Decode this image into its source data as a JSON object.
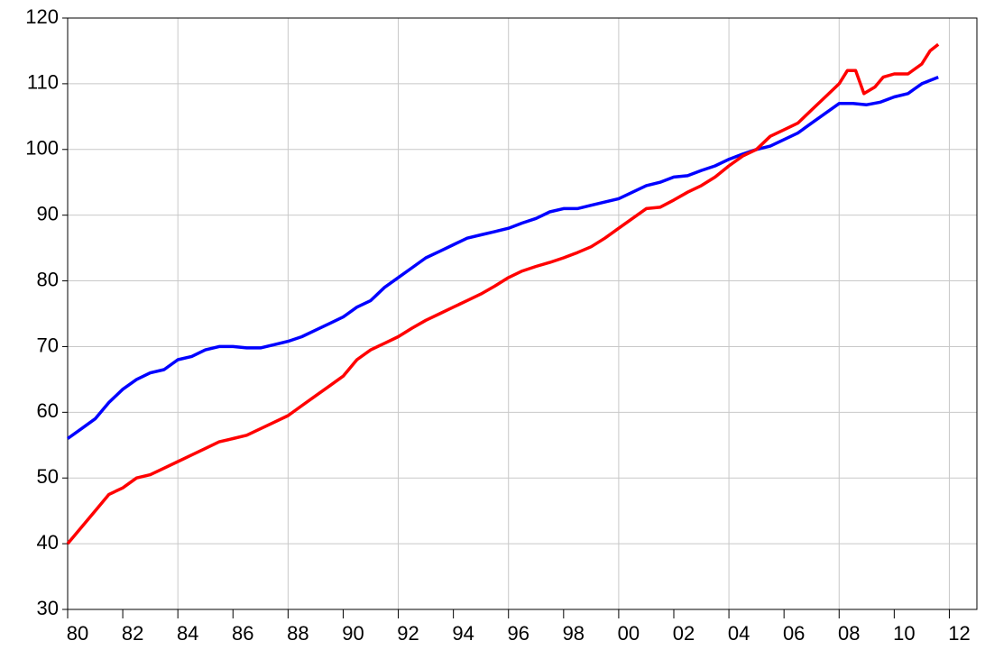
{
  "chart_data": {
    "type": "line",
    "xlim": [
      1980,
      2013
    ],
    "ylim": [
      30,
      120
    ],
    "yticks": [
      30,
      40,
      50,
      60,
      70,
      80,
      90,
      100,
      110,
      120
    ],
    "xticks": [
      {
        "value": 1980,
        "label": "80"
      },
      {
        "value": 1982,
        "label": "82"
      },
      {
        "value": 1984,
        "label": "84"
      },
      {
        "value": 1986,
        "label": "86"
      },
      {
        "value": 1988,
        "label": "88"
      },
      {
        "value": 1990,
        "label": "90"
      },
      {
        "value": 1992,
        "label": "92"
      },
      {
        "value": 1994,
        "label": "94"
      },
      {
        "value": 1996,
        "label": "96"
      },
      {
        "value": 1998,
        "label": "98"
      },
      {
        "value": 2000,
        "label": "00"
      },
      {
        "value": 2002,
        "label": "02"
      },
      {
        "value": 2004,
        "label": "04"
      },
      {
        "value": 2006,
        "label": "06"
      },
      {
        "value": 2008,
        "label": "08"
      },
      {
        "value": 2010,
        "label": "10"
      },
      {
        "value": 2012,
        "label": "12"
      }
    ],
    "xgrid": [
      1984,
      1988,
      1992,
      1996,
      2000,
      2004,
      2008,
      2012
    ],
    "grid": true,
    "series": [
      {
        "color": "#0000ff",
        "x": [
          1980,
          1980.5,
          1981,
          1981.5,
          1982,
          1982.5,
          1983,
          1983.5,
          1984,
          1984.5,
          1985,
          1985.5,
          1986,
          1986.5,
          1987,
          1987.5,
          1988,
          1988.5,
          1989,
          1989.5,
          1990,
          1990.5,
          1991,
          1991.5,
          1992,
          1992.5,
          1993,
          1993.5,
          1994,
          1994.5,
          1995,
          1995.5,
          1996,
          1996.5,
          1997,
          1997.5,
          1998,
          1998.5,
          1999,
          1999.5,
          2000,
          2000.5,
          2001,
          2001.5,
          2002,
          2002.5,
          2003,
          2003.5,
          2004,
          2004.5,
          2005,
          2005.5,
          2006,
          2006.5,
          2007,
          2007.5,
          2008,
          2008.5,
          2009,
          2009.5,
          2010,
          2010.5,
          2011,
          2011.6
        ],
        "values": [
          56,
          57.5,
          59,
          61.5,
          63.5,
          65,
          66,
          66.5,
          68,
          68.5,
          69.5,
          70,
          70,
          69.8,
          69.8,
          70.3,
          70.8,
          71.5,
          72.5,
          73.5,
          74.5,
          76,
          77,
          79,
          80.5,
          82,
          83.5,
          84.5,
          85.5,
          86.5,
          87,
          87.5,
          88,
          88.8,
          89.5,
          90.5,
          91,
          91,
          91.5,
          92,
          92.5,
          93.5,
          94.5,
          95,
          95.8,
          96,
          96.8,
          97.5,
          98.5,
          99.3,
          100,
          100.5,
          101.5,
          102.5,
          104,
          105.5,
          107,
          107,
          106.8,
          107.2,
          108,
          108.5,
          110,
          111
        ]
      },
      {
        "color": "#ff0000",
        "x": [
          1980,
          1980.5,
          1981,
          1981.5,
          1982,
          1982.5,
          1983,
          1983.5,
          1984,
          1984.5,
          1985,
          1985.5,
          1986,
          1986.5,
          1987,
          1987.5,
          1988,
          1988.5,
          1989,
          1989.5,
          1990,
          1990.5,
          1991,
          1991.5,
          1992,
          1992.5,
          1993,
          1993.5,
          1994,
          1994.5,
          1995,
          1995.5,
          1996,
          1996.5,
          1997,
          1997.5,
          1998,
          1998.5,
          1999,
          1999.5,
          2000,
          2000.5,
          2001,
          2001.5,
          2002,
          2002.5,
          2003,
          2003.5,
          2004,
          2004.5,
          2005,
          2005.5,
          2006,
          2006.5,
          2007,
          2007.5,
          2008,
          2008.3,
          2008.6,
          2008.9,
          2009.3,
          2009.6,
          2010,
          2010.5,
          2011,
          2011.3,
          2011.6
        ],
        "values": [
          40,
          42.5,
          45,
          47.5,
          48.5,
          50,
          50.5,
          51.5,
          52.5,
          53.5,
          54.5,
          55.5,
          56,
          56.5,
          57.5,
          58.5,
          59.5,
          61,
          62.5,
          64,
          65.5,
          68,
          69.5,
          70.5,
          71.5,
          72.8,
          74,
          75,
          76,
          77,
          78,
          79.2,
          80.5,
          81.5,
          82.2,
          82.8,
          83.5,
          84.3,
          85.2,
          86.5,
          88,
          89.5,
          91,
          91.2,
          92.3,
          93.5,
          94.5,
          95.8,
          97.5,
          99,
          100,
          102,
          103,
          104,
          106,
          108,
          110,
          112,
          112,
          108.5,
          109.5,
          111,
          111.5,
          111.5,
          113,
          115,
          116
        ]
      }
    ]
  }
}
